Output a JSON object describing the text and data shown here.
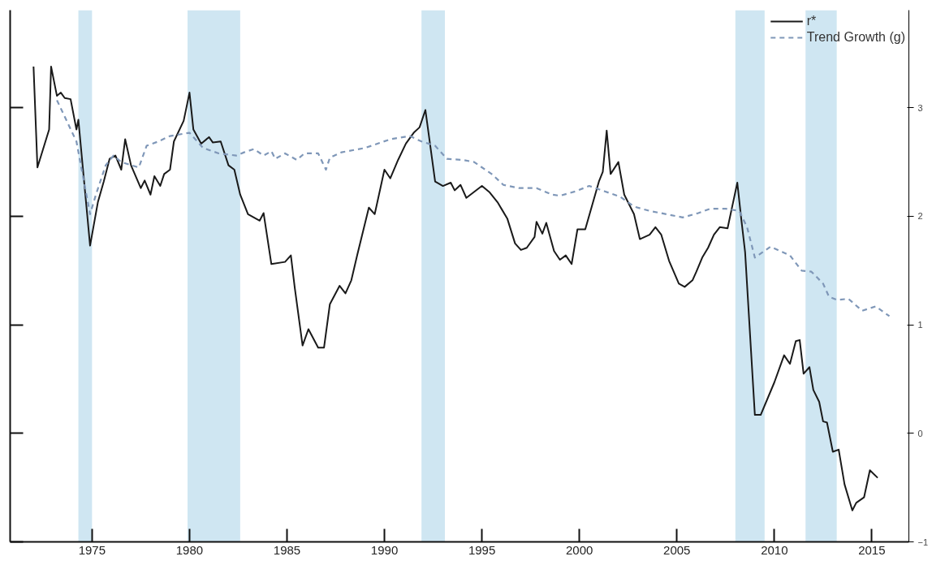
{
  "chart_data": {
    "type": "line",
    "xlim": [
      1970.8,
      2016.9
    ],
    "ylim": [
      -1,
      3.9
    ],
    "xticks": [
      1975,
      1980,
      1985,
      1990,
      1995,
      2000,
      2005,
      2010,
      2015
    ],
    "yticks": [
      -1,
      0,
      1,
      2,
      3
    ],
    "grid": false,
    "legend": "top right",
    "bands": [
      {
        "axis": "x",
        "from": 1974.3,
        "to": 1975.0,
        "color": "#cfe6f2"
      },
      {
        "axis": "x",
        "from": 1979.9,
        "to": 1982.6,
        "color": "#cfe6f2"
      },
      {
        "axis": "x",
        "from": 1991.9,
        "to": 1993.1,
        "color": "#cfe6f2"
      },
      {
        "axis": "x",
        "from": 2008.0,
        "to": 2009.5,
        "color": "#cfe6f2"
      },
      {
        "axis": "x",
        "from": 2011.6,
        "to": 2013.2,
        "color": "#cfe6f2"
      }
    ],
    "series": [
      {
        "name": "r*",
        "color": "#1a1a1a",
        "line_style": "solid",
        "x": [
          1972.0,
          1972.2,
          1972.8,
          1972.9,
          1973.2,
          1973.4,
          1973.6,
          1973.9,
          1974.2,
          1974.3,
          1974.9,
          1975.3,
          1975.6,
          1975.9,
          1976.2,
          1976.5,
          1976.7,
          1977.0,
          1977.5,
          1977.7,
          1978.0,
          1978.2,
          1978.5,
          1978.7,
          1979.0,
          1979.2,
          1979.7,
          1980.0,
          1980.2,
          1980.6,
          1981.0,
          1981.2,
          1981.6,
          1982.0,
          1982.3,
          1982.6,
          1983.0,
          1983.6,
          1983.8,
          1984.2,
          1984.9,
          1985.2,
          1985.4,
          1985.8,
          1986.1,
          1986.6,
          1986.9,
          1987.2,
          1987.7,
          1988.0,
          1988.3,
          1988.6,
          1989.2,
          1989.5,
          1990.0,
          1990.3,
          1990.7,
          1991.1,
          1991.5,
          1991.8,
          1992.1,
          1992.6,
          1993.0,
          1993.4,
          1993.6,
          1993.9,
          1994.2,
          1995.0,
          1995.4,
          1995.8,
          1996.0,
          1996.3,
          1996.7,
          1997.0,
          1997.3,
          1997.7,
          1997.8,
          1998.1,
          1998.3,
          1998.7,
          1999.0,
          1999.3,
          1999.6,
          1999.9,
          2000.3,
          2001.0,
          2001.2,
          2001.4,
          2001.6,
          2002.0,
          2002.3,
          2002.8,
          2003.1,
          2003.6,
          2003.9,
          2004.2,
          2004.6,
          2005.1,
          2005.4,
          2005.8,
          2006.0,
          2006.3,
          2006.6,
          2006.9,
          2007.2,
          2007.6,
          2008.1,
          2008.3,
          2008.5,
          2009.0,
          2009.3,
          2010.0,
          2010.5,
          2010.8,
          2011.1,
          2011.3,
          2011.5,
          2011.8,
          2012.0,
          2012.3,
          2012.5,
          2012.7,
          2013.0,
          2013.3,
          2013.6,
          2014.0,
          2014.2,
          2014.6,
          2014.9,
          2015.3
        ],
        "values": [
          3.38,
          2.45,
          2.8,
          3.38,
          3.11,
          3.14,
          3.09,
          3.08,
          2.8,
          2.89,
          1.73,
          2.13,
          2.32,
          2.53,
          2.56,
          2.43,
          2.71,
          2.47,
          2.26,
          2.33,
          2.2,
          2.37,
          2.28,
          2.39,
          2.43,
          2.69,
          2.88,
          3.14,
          2.8,
          2.67,
          2.73,
          2.68,
          2.69,
          2.47,
          2.43,
          2.2,
          2.02,
          1.96,
          2.03,
          1.56,
          1.58,
          1.64,
          1.34,
          0.81,
          0.96,
          0.79,
          0.79,
          1.19,
          1.36,
          1.29,
          1.41,
          1.64,
          2.08,
          2.02,
          2.43,
          2.35,
          2.52,
          2.67,
          2.77,
          2.82,
          2.98,
          2.32,
          2.28,
          2.31,
          2.24,
          2.29,
          2.17,
          2.28,
          2.22,
          2.13,
          2.07,
          1.98,
          1.75,
          1.69,
          1.71,
          1.81,
          1.95,
          1.84,
          1.94,
          1.68,
          1.6,
          1.64,
          1.56,
          1.88,
          1.88,
          2.32,
          2.41,
          2.79,
          2.39,
          2.5,
          2.2,
          2.02,
          1.79,
          1.83,
          1.9,
          1.83,
          1.59,
          1.38,
          1.35,
          1.41,
          1.49,
          1.62,
          1.71,
          1.83,
          1.9,
          1.89,
          2.31,
          1.98,
          1.67,
          0.17,
          0.17,
          0.47,
          0.72,
          0.64,
          0.85,
          0.86,
          0.55,
          0.61,
          0.4,
          0.29,
          0.11,
          0.1,
          -0.17,
          -0.15,
          -0.47,
          -0.71,
          -0.64,
          -0.59,
          -0.34,
          -0.41
        ]
      },
      {
        "name": "Trend Growth (g)",
        "color": "#7f97b8",
        "line_style": "dashed",
        "x": [
          1973.2,
          1974.2,
          1974.9,
          1975.2,
          1975.7,
          1976.1,
          1976.5,
          1977.4,
          1977.8,
          1978.4,
          1979.0,
          1980.0,
          1980.7,
          1981.5,
          1982.4,
          1982.8,
          1983.3,
          1983.8,
          1984.2,
          1984.4,
          1984.9,
          1985.5,
          1985.9,
          1986.6,
          1987.0,
          1987.2,
          1987.8,
          1989.0,
          1990.3,
          1991.3,
          1991.9,
          1992.6,
          1993.2,
          1994.0,
          1994.6,
          1995.5,
          1996.1,
          1996.9,
          1997.8,
          1998.6,
          1999.0,
          1999.8,
          2000.5,
          2001.3,
          2002.1,
          2002.8,
          2003.6,
          2005.3,
          2006.1,
          2006.7,
          2007.5,
          2008.2,
          2008.6,
          2009.0,
          2009.8,
          2010.8,
          2011.4,
          2011.9,
          2012.5,
          2012.8,
          2013.2,
          2013.8,
          2014.5,
          2015.2,
          2015.9
        ],
        "values": [
          3.07,
          2.69,
          2.02,
          2.2,
          2.47,
          2.56,
          2.5,
          2.45,
          2.65,
          2.69,
          2.74,
          2.77,
          2.63,
          2.58,
          2.56,
          2.59,
          2.62,
          2.56,
          2.6,
          2.53,
          2.58,
          2.52,
          2.58,
          2.58,
          2.43,
          2.54,
          2.59,
          2.63,
          2.71,
          2.74,
          2.69,
          2.65,
          2.53,
          2.52,
          2.5,
          2.39,
          2.29,
          2.26,
          2.26,
          2.2,
          2.19,
          2.23,
          2.28,
          2.23,
          2.18,
          2.09,
          2.05,
          1.99,
          2.03,
          2.07,
          2.07,
          2.05,
          1.9,
          1.62,
          1.72,
          1.64,
          1.5,
          1.49,
          1.38,
          1.26,
          1.23,
          1.24,
          1.13,
          1.17,
          1.08
        ]
      }
    ]
  }
}
